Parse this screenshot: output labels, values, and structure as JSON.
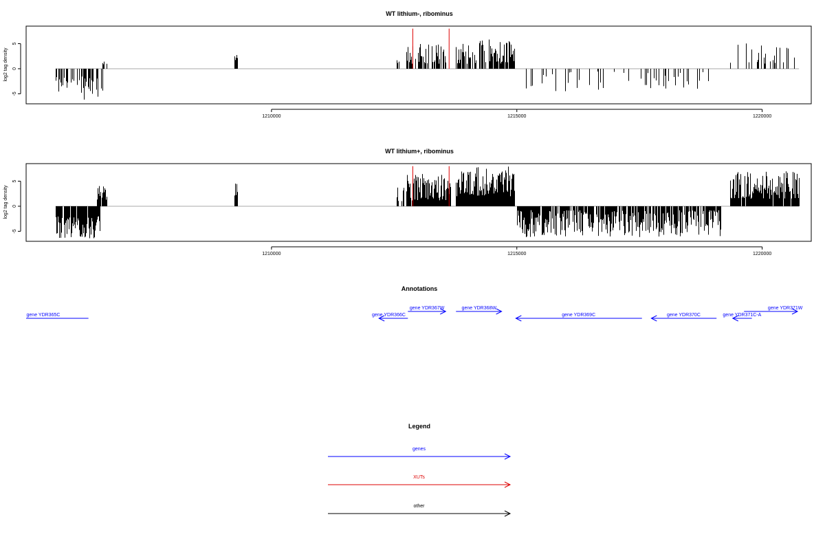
{
  "chart_data": [
    {
      "type": "bar",
      "title": "WT lithium-, ribominus",
      "ylabel": "log2 tag density",
      "xlim": [
        1205000,
        1221000
      ],
      "ylim": [
        -7,
        8.5
      ],
      "yticks": [
        -5,
        0,
        5
      ],
      "ytick_labels": [
        "-5",
        "0",
        "5"
      ],
      "xticks": [
        1210000,
        1215000,
        1220000
      ],
      "xtick_labels": [
        "1210000",
        "1215000",
        "1220000"
      ],
      "baseline_color": "#aaaaaa",
      "bar_color": "#000000",
      "highlight_color": "#dd0000",
      "highlights": [
        {
          "x": 1212880,
          "y": 8.0
        },
        {
          "x": 1213620,
          "y": 8.0
        }
      ],
      "segments": [
        {
          "from": 1205600,
          "to": 1206550,
          "sign": -1,
          "min": 1.5,
          "max": 6.2,
          "density": 0.42,
          "seed": 11
        },
        {
          "from": 1206550,
          "to": 1206650,
          "sign": 1,
          "min": 0.8,
          "max": 2.0,
          "density": 0.5,
          "seed": 12
        },
        {
          "from": 1209250,
          "to": 1209300,
          "sign": 1,
          "min": 1.5,
          "max": 4.2,
          "density": 1.0,
          "seed": 13
        },
        {
          "from": 1212550,
          "to": 1212600,
          "sign": 1,
          "min": 1.0,
          "max": 2.5,
          "density": 0.5,
          "seed": 14
        },
        {
          "from": 1212750,
          "to": 1213550,
          "sign": 1,
          "min": 1.0,
          "max": 5.2,
          "density": 0.62,
          "seed": 15
        },
        {
          "from": 1213750,
          "to": 1214950,
          "sign": 1,
          "min": 1.0,
          "max": 6.0,
          "density": 0.7,
          "seed": 16
        },
        {
          "from": 1215000,
          "to": 1216800,
          "sign": -1,
          "min": 0.5,
          "max": 4.5,
          "density": 0.12,
          "seed": 17
        },
        {
          "from": 1216800,
          "to": 1217600,
          "sign": -1,
          "min": 0.5,
          "max": 2.5,
          "density": 0.06,
          "seed": 18
        },
        {
          "from": 1217600,
          "to": 1219050,
          "sign": -1,
          "min": 0.5,
          "max": 4.0,
          "density": 0.22,
          "seed": 19
        },
        {
          "from": 1219350,
          "to": 1220700,
          "sign": 1,
          "min": 1.0,
          "max": 5.2,
          "density": 0.3,
          "seed": 20
        }
      ]
    },
    {
      "type": "bar",
      "title": "WT lithium+, ribominus",
      "ylabel": "log2 tag density",
      "xlim": [
        1205000,
        1221000
      ],
      "ylim": [
        -7,
        8.5
      ],
      "yticks": [
        -5,
        0,
        5
      ],
      "ytick_labels": [
        "-5",
        "0",
        "5"
      ],
      "xticks": [
        1210000,
        1215000,
        1220000
      ],
      "xtick_labels": [
        "1210000",
        "1215000",
        "1220000"
      ],
      "baseline_color": "#aaaaaa",
      "bar_color": "#000000",
      "highlight_color": "#dd0000",
      "highlights": [
        {
          "x": 1212880,
          "y": 8.0
        },
        {
          "x": 1213620,
          "y": 8.0
        }
      ],
      "segments": [
        {
          "from": 1205600,
          "to": 1206500,
          "sign": -1,
          "min": 2.0,
          "max": 6.5,
          "density": 0.9,
          "seed": 31
        },
        {
          "from": 1206450,
          "to": 1206650,
          "sign": 1,
          "min": 1.0,
          "max": 4.2,
          "density": 0.8,
          "seed": 32
        },
        {
          "from": 1209250,
          "to": 1209300,
          "sign": 1,
          "min": 1.5,
          "max": 5.0,
          "density": 1.0,
          "seed": 33
        },
        {
          "from": 1212550,
          "to": 1212700,
          "sign": 1,
          "min": 1.0,
          "max": 4.0,
          "density": 0.5,
          "seed": 34
        },
        {
          "from": 1212750,
          "to": 1213650,
          "sign": 1,
          "min": 1.0,
          "max": 6.5,
          "density": 0.95,
          "seed": 35
        },
        {
          "from": 1213750,
          "to": 1214950,
          "sign": 1,
          "min": 2.0,
          "max": 8.0,
          "density": 1.0,
          "seed": 36
        },
        {
          "from": 1215000,
          "to": 1219150,
          "sign": -1,
          "min": 0.8,
          "max": 6.2,
          "density": 0.8,
          "seed": 37
        },
        {
          "from": 1219350,
          "to": 1220750,
          "sign": 1,
          "min": 1.5,
          "max": 7.0,
          "density": 0.95,
          "seed": 38
        }
      ]
    }
  ],
  "annotations": {
    "title": "Annotations",
    "xlim": [
      1205000,
      1221000
    ],
    "features": [
      {
        "label": "gene YDR365C",
        "from": 1204700,
        "to": 1206270,
        "row": 1,
        "strand": "-",
        "label_x": 1205350,
        "color": "#0000ff"
      },
      {
        "label": "gene YDR366C",
        "from": 1212190,
        "to": 1212780,
        "row": 1,
        "strand": "-",
        "label_x": 1212390,
        "color": "#0000ff"
      },
      {
        "label": "gene YDR367W",
        "from": 1212780,
        "to": 1213550,
        "row": 0,
        "strand": "+",
        "label_x": 1213170,
        "color": "#0000ff"
      },
      {
        "label": "gene YDR368W",
        "from": 1213760,
        "to": 1214690,
        "row": 0,
        "strand": "+",
        "label_x": 1214230,
        "color": "#0000ff"
      },
      {
        "label": "gene YDR369C",
        "from": 1214980,
        "to": 1217550,
        "row": 1,
        "strand": "-",
        "label_x": 1216260,
        "color": "#0000ff"
      },
      {
        "label": "gene YDR370C",
        "from": 1217740,
        "to": 1219070,
        "row": 1,
        "strand": "-",
        "label_x": 1218400,
        "color": "#0000ff"
      },
      {
        "label": "gene YDR371C-A",
        "from": 1219400,
        "to": 1219790,
        "row": 1,
        "strand": "-",
        "label_x": 1219590,
        "color": "#0000ff"
      },
      {
        "label": "gene YDR371W",
        "from": 1219630,
        "to": 1221310,
        "row": 0,
        "strand": "+",
        "label_x": 1220470,
        "color": "#0000ff"
      }
    ]
  },
  "legend": {
    "title": "Legend",
    "items": [
      {
        "label": "genes",
        "color": "#0000ff"
      },
      {
        "label": "XUTs",
        "color": "#dd0000"
      },
      {
        "label": "other",
        "color": "#000000"
      }
    ]
  }
}
